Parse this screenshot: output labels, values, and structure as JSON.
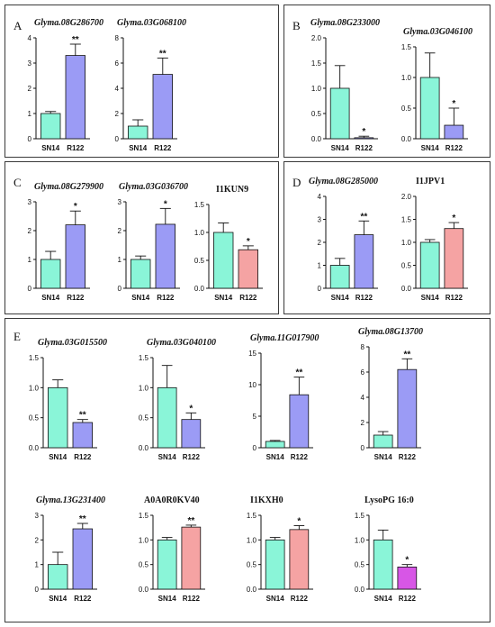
{
  "panels": [
    {
      "letter": "A",
      "charts": [
        0,
        1
      ]
    },
    {
      "letter": "B",
      "charts": [
        2,
        3
      ]
    },
    {
      "letter": "C",
      "charts": [
        4,
        5,
        6
      ]
    },
    {
      "letter": "D",
      "charts": [
        7,
        8
      ]
    },
    {
      "letter": "E",
      "charts": [
        9,
        10,
        11,
        12,
        13,
        14,
        15,
        16
      ]
    }
  ],
  "colors": {
    "sn14": "#8af5d8",
    "purple": "#9b9bf5",
    "salmon": "#f5a3a3",
    "magenta": "#d756e6",
    "axis": "#111111"
  },
  "chart_data": [
    {
      "type": "bar",
      "title": "Glyma.08G286700",
      "italic": true,
      "categories": [
        "SN14",
        "R122"
      ],
      "values": [
        1.0,
        3.3
      ],
      "errors": [
        0.08,
        0.45
      ],
      "sig": [
        "",
        "**"
      ],
      "colors": [
        "sn14",
        "purple"
      ],
      "ylim": [
        0,
        4
      ],
      "yticks": [
        "0",
        "1",
        "2",
        "3",
        "4"
      ]
    },
    {
      "type": "bar",
      "title": "Glyma.03G068100",
      "italic": true,
      "categories": [
        "SN14",
        "R122"
      ],
      "values": [
        1.0,
        5.1
      ],
      "errors": [
        0.5,
        1.3
      ],
      "sig": [
        "",
        "**"
      ],
      "colors": [
        "sn14",
        "purple"
      ],
      "ylim": [
        0,
        8
      ],
      "yticks": [
        "0",
        "2",
        "4",
        "6",
        "8"
      ]
    },
    {
      "type": "bar",
      "title": "Glyma.08G233000",
      "italic": true,
      "categories": [
        "SN14",
        "R122"
      ],
      "values": [
        1.0,
        0.02
      ],
      "errors": [
        0.45,
        0.03
      ],
      "sig": [
        "",
        "*"
      ],
      "colors": [
        "sn14",
        "purple"
      ],
      "ylim": [
        0,
        2.0
      ],
      "yticks": [
        "0.0",
        "0.5",
        "1.0",
        "1.5",
        "2.0"
      ]
    },
    {
      "type": "bar",
      "title": "Glyma.03G046100",
      "italic": true,
      "categories": [
        "SN14",
        "R122"
      ],
      "values": [
        1.0,
        0.22
      ],
      "errors": [
        0.4,
        0.28
      ],
      "sig": [
        "",
        "*"
      ],
      "colors": [
        "sn14",
        "purple"
      ],
      "ylim": [
        0,
        1.5
      ],
      "yticks": [
        "0.0",
        "0.5",
        "1.0",
        "1.5"
      ]
    },
    {
      "type": "bar",
      "title": "Glyma.08G279900",
      "italic": true,
      "categories": [
        "SN14",
        "R122"
      ],
      "values": [
        1.0,
        2.2
      ],
      "errors": [
        0.28,
        0.48
      ],
      "sig": [
        "",
        "*"
      ],
      "colors": [
        "sn14",
        "purple"
      ],
      "ylim": [
        0,
        3
      ],
      "yticks": [
        "0",
        "1",
        "2",
        "3"
      ]
    },
    {
      "type": "bar",
      "title": "Glyma.03G036700",
      "italic": true,
      "categories": [
        "SN14",
        "R122"
      ],
      "values": [
        1.0,
        2.22
      ],
      "errors": [
        0.12,
        0.55
      ],
      "sig": [
        "",
        "*"
      ],
      "colors": [
        "sn14",
        "purple"
      ],
      "ylim": [
        0,
        3
      ],
      "yticks": [
        "0",
        "1",
        "2",
        "3"
      ]
    },
    {
      "type": "bar",
      "title": "I1KUN9",
      "italic": false,
      "categories": [
        "SN14",
        "R122"
      ],
      "values": [
        1.0,
        0.69
      ],
      "errors": [
        0.17,
        0.07
      ],
      "sig": [
        "",
        "*"
      ],
      "colors": [
        "sn14",
        "salmon"
      ],
      "ylim": [
        0,
        1.5
      ],
      "yticks": [
        "0.0",
        "0.5",
        "1.0",
        "1.5"
      ]
    },
    {
      "type": "bar",
      "title": "Glyma.08G285000",
      "italic": true,
      "categories": [
        "SN14",
        "R122"
      ],
      "values": [
        1.0,
        2.33
      ],
      "errors": [
        0.3,
        0.6
      ],
      "sig": [
        "",
        "**"
      ],
      "colors": [
        "sn14",
        "purple"
      ],
      "ylim": [
        0,
        4
      ],
      "yticks": [
        "0",
        "1",
        "2",
        "3",
        "4"
      ]
    },
    {
      "type": "bar",
      "title": "I1JPV1",
      "italic": false,
      "categories": [
        "SN14",
        "R122"
      ],
      "values": [
        1.0,
        1.3
      ],
      "errors": [
        0.06,
        0.13
      ],
      "sig": [
        "",
        "*"
      ],
      "colors": [
        "sn14",
        "salmon"
      ],
      "ylim": [
        0,
        2.0
      ],
      "yticks": [
        "0.0",
        "0.5",
        "1.0",
        "1.5",
        "2.0"
      ]
    },
    {
      "type": "bar",
      "title": "Glyma.03G015500",
      "italic": true,
      "categories": [
        "SN14",
        "R122"
      ],
      "values": [
        1.0,
        0.42
      ],
      "errors": [
        0.13,
        0.05
      ],
      "sig": [
        "",
        "**"
      ],
      "colors": [
        "sn14",
        "purple"
      ],
      "ylim": [
        0,
        1.5
      ],
      "yticks": [
        "0.0",
        "0.5",
        "1.0",
        "1.5"
      ]
    },
    {
      "type": "bar",
      "title": "Glyma.03G040100",
      "italic": true,
      "categories": [
        "SN14",
        "R122"
      ],
      "values": [
        1.0,
        0.47
      ],
      "errors": [
        0.37,
        0.11
      ],
      "sig": [
        "",
        "*"
      ],
      "colors": [
        "sn14",
        "purple"
      ],
      "ylim": [
        0,
        1.5
      ],
      "yticks": [
        "0.0",
        "0.5",
        "1.0",
        "1.5"
      ]
    },
    {
      "type": "bar",
      "title": "Glyma.11G017900",
      "italic": true,
      "categories": [
        "SN14",
        "R122"
      ],
      "values": [
        1.0,
        8.4
      ],
      "errors": [
        0.15,
        2.8
      ],
      "sig": [
        "",
        "**"
      ],
      "colors": [
        "sn14",
        "purple"
      ],
      "ylim": [
        0,
        15
      ],
      "yticks": [
        "0",
        "5",
        "10",
        "15"
      ]
    },
    {
      "type": "bar",
      "title": "Glyma.08G13700",
      "italic": true,
      "categories": [
        "SN14",
        "R122"
      ],
      "values": [
        1.0,
        6.2
      ],
      "errors": [
        0.28,
        0.85
      ],
      "sig": [
        "",
        "**"
      ],
      "colors": [
        "sn14",
        "purple"
      ],
      "ylim": [
        0,
        8
      ],
      "yticks": [
        "0",
        "2",
        "4",
        "6",
        "8"
      ]
    },
    {
      "type": "bar",
      "title": "Glyma.13G231400",
      "italic": true,
      "categories": [
        "SN14",
        "R122"
      ],
      "values": [
        1.0,
        2.45
      ],
      "errors": [
        0.5,
        0.22
      ],
      "sig": [
        "",
        "**"
      ],
      "colors": [
        "sn14",
        "purple"
      ],
      "ylim": [
        0,
        3
      ],
      "yticks": [
        "0",
        "1",
        "2",
        "3"
      ]
    },
    {
      "type": "bar",
      "title": "A0A0R0KV40",
      "italic": false,
      "categories": [
        "SN14",
        "R122"
      ],
      "values": [
        1.0,
        1.26
      ],
      "errors": [
        0.05,
        0.04
      ],
      "sig": [
        "",
        "**"
      ],
      "colors": [
        "sn14",
        "salmon"
      ],
      "ylim": [
        0,
        1.5
      ],
      "yticks": [
        "0.0",
        "0.5",
        "1.0",
        "1.5"
      ]
    },
    {
      "type": "bar",
      "title": "I1KXH0",
      "italic": false,
      "categories": [
        "SN14",
        "R122"
      ],
      "values": [
        1.0,
        1.21
      ],
      "errors": [
        0.05,
        0.08
      ],
      "sig": [
        "",
        "*"
      ],
      "colors": [
        "sn14",
        "salmon"
      ],
      "ylim": [
        0,
        1.5
      ],
      "yticks": [
        "0.0",
        "0.5",
        "1.0",
        "1.5"
      ]
    },
    {
      "type": "bar",
      "title": "LysoPG 16:0",
      "italic": false,
      "categories": [
        "SN14",
        "R122"
      ],
      "values": [
        1.0,
        0.45
      ],
      "errors": [
        0.2,
        0.05
      ],
      "sig": [
        "",
        "*"
      ],
      "colors": [
        "sn14",
        "magenta"
      ],
      "ylim": [
        0,
        1.5
      ],
      "yticks": [
        "0.0",
        "0.5",
        "1.0",
        "1.5"
      ]
    }
  ]
}
